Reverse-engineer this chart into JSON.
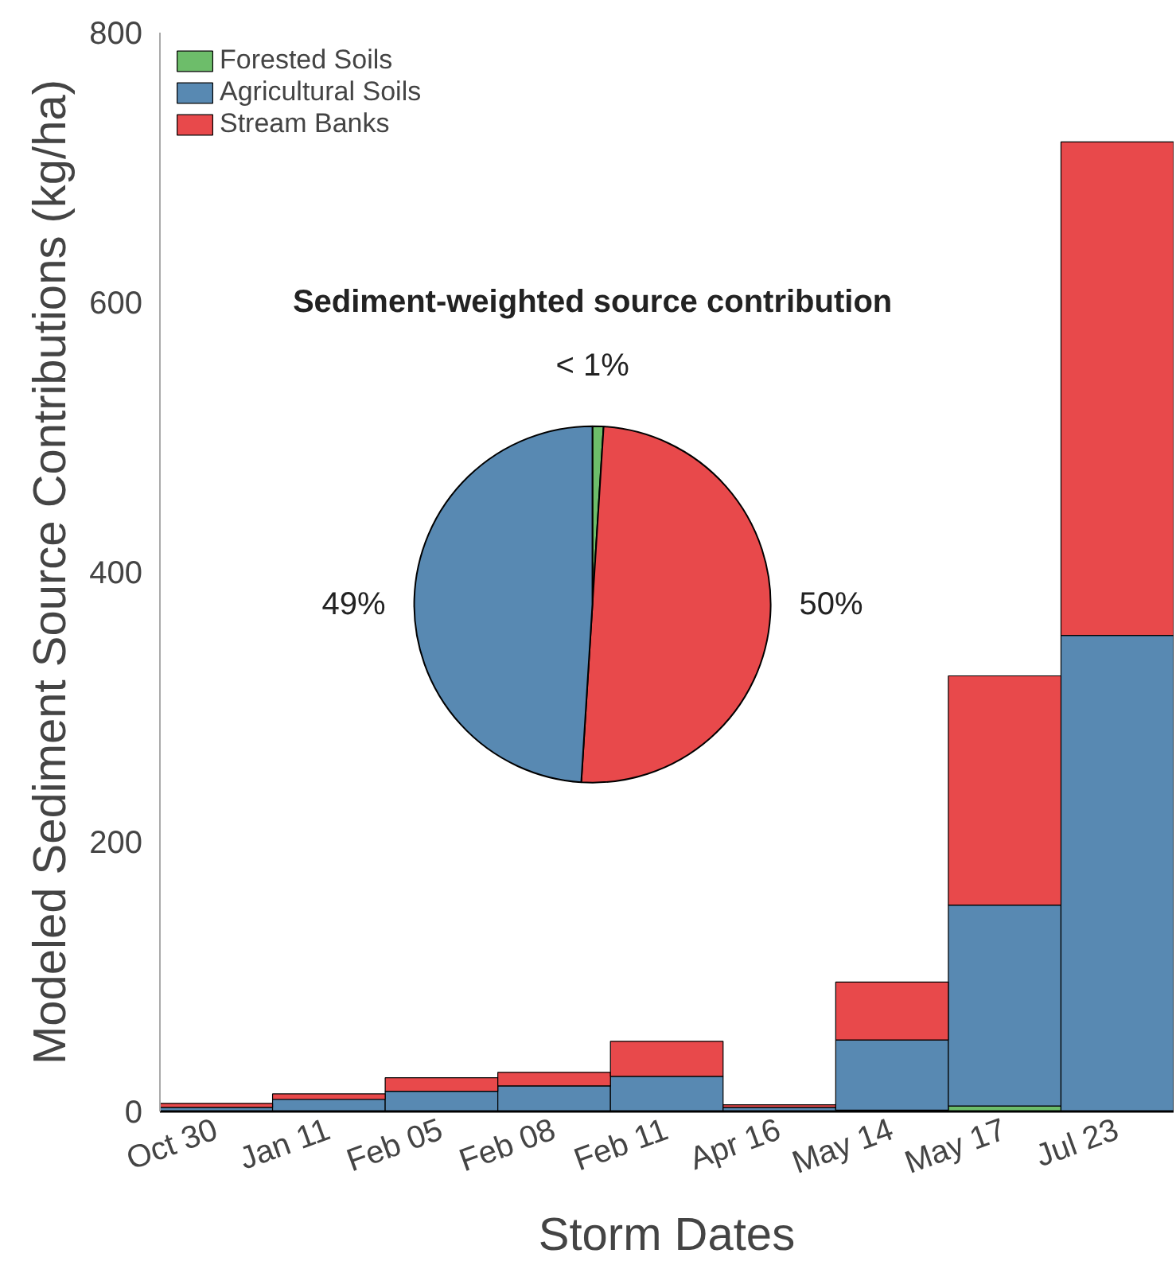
{
  "chart_data": [
    {
      "type": "bar",
      "stacked": true,
      "xlabel": "Storm Dates",
      "ylabel": "Modeled Sediment Source Contributions (kg/ha)",
      "categories": [
        "Oct 30",
        "Jan 11",
        "Feb 05",
        "Feb 08",
        "Feb 11",
        "Apr 16",
        "May 14",
        "May 17",
        "Jul 23"
      ],
      "series": [
        {
          "name": "Forested Soils",
          "color": "#6dbd6a",
          "values": [
            0,
            0,
            0,
            0,
            0,
            0,
            1,
            4,
            null
          ]
        },
        {
          "name": "Agricultural Soils",
          "color": "#5889b2",
          "values": [
            3,
            9,
            15,
            19,
            26,
            3,
            52,
            149,
            353
          ]
        },
        {
          "name": "Stream Banks",
          "color": "#e8494b",
          "values": [
            3,
            4,
            10,
            10,
            26,
            2,
            43,
            170,
            366
          ]
        }
      ],
      "ylim": [
        0,
        800
      ],
      "yticks": [
        0,
        200,
        400,
        600,
        800
      ],
      "grid": false,
      "legend": "top left"
    },
    {
      "type": "pie",
      "title": "Sediment-weighted source contribution",
      "categories": [
        null,
        null,
        null
      ],
      "values": [
        1,
        50,
        49
      ],
      "colors": [
        "#6dbd6a",
        "#e8494b",
        "#5889b2"
      ],
      "value_labels": [
        "< 1%",
        "50%",
        "49%"
      ]
    }
  ]
}
